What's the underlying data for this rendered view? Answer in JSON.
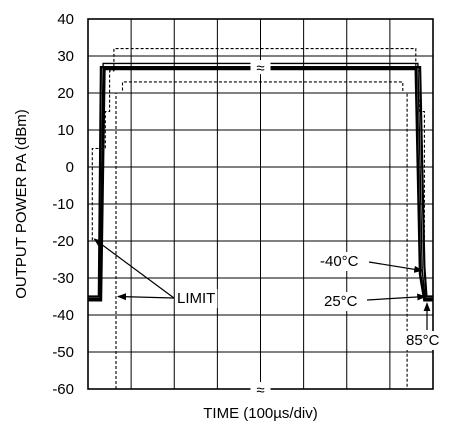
{
  "chart_data": {
    "type": "line",
    "title": "",
    "xlabel": "TIME (100µs/div)",
    "ylabel": "OUTPUT POWER PA (dBm)",
    "ylim": [
      -60,
      40
    ],
    "y_ticks": [
      "40",
      "30",
      "20",
      "10",
      "0",
      "-10",
      "-20",
      "-30",
      "-40",
      "-50",
      "-60"
    ],
    "x_divisions": 8,
    "grid": true,
    "axis_break_symbol": "≈",
    "series": [
      {
        "x": [
          0,
          0.2,
          0.25,
          0.3,
          7.7,
          7.8,
          7.85,
          8
        ],
        "y": [
          -35,
          -35,
          -35,
          27,
          27,
          -27,
          -35,
          -35
        ]
      },
      {
        "x": [
          0,
          0.2,
          0.28,
          0.35,
          7.65,
          7.75,
          7.82,
          8
        ],
        "y": [
          -35.5,
          -35.5,
          -35.5,
          28,
          28,
          -28,
          -35.5,
          -35.5
        ]
      },
      {
        "x": [
          0,
          0.2,
          0.3,
          0.38,
          7.6,
          7.7,
          7.8,
          8
        ],
        "y": [
          -36,
          -36,
          -36,
          26.5,
          26.5,
          -29,
          -36,
          -36
        ]
      },
      {
        "x": [
          0,
          0.1,
          0.1,
          0.4,
          0.4,
          0.5,
          0.5,
          0.6,
          0.6,
          7.6,
          7.6,
          7.7,
          7.7,
          7.8,
          7.8,
          8
        ],
        "y": [
          -20,
          -20,
          5,
          5,
          15,
          15,
          26,
          26,
          32,
          32,
          26,
          26,
          15,
          15,
          -20,
          -20
        ]
      },
      {
        "x": [
          0.65,
          0.65,
          0.8,
          0.8,
          7.3,
          7.3,
          7.4,
          7.4
        ],
        "y": [
          -60,
          20,
          20,
          23,
          23,
          20,
          20,
          -60
        ]
      }
    ],
    "annotations": [
      {
        "text": "LIMIT"
      },
      {
        "text": "-40°C"
      },
      {
        "text": "25°C"
      },
      {
        "text": "85°C"
      }
    ]
  }
}
